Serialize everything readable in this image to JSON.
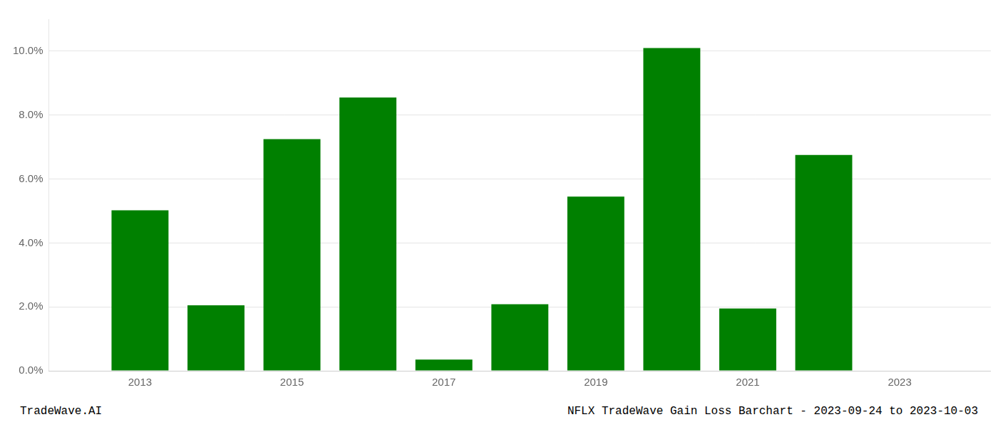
{
  "chart_data": {
    "type": "bar",
    "x": [
      2013,
      2014,
      2015,
      2016,
      2017,
      2018,
      2019,
      2020,
      2021,
      2022
    ],
    "values": [
      0.0502,
      0.0205,
      0.0725,
      0.0855,
      0.0035,
      0.0208,
      0.0545,
      0.101,
      0.0195,
      0.0675
    ],
    "color": "#008000",
    "xlim": [
      2011.8,
      2024.2
    ],
    "xticks": [
      2013,
      2015,
      2017,
      2019,
      2021,
      2023
    ],
    "ylim": [
      0,
      0.11
    ],
    "yticks": [
      {
        "value": 0.0,
        "label": "0.0%"
      },
      {
        "value": 0.02,
        "label": "2.0%"
      },
      {
        "value": 0.04,
        "label": "4.0%"
      },
      {
        "value": 0.06,
        "label": "6.0%"
      },
      {
        "value": 0.08,
        "label": "8.0%"
      },
      {
        "value": 0.1,
        "label": "10.0%"
      }
    ],
    "grid": "y",
    "annotations": [
      "TradeWave.AI",
      "NFLX TradeWave Gain Loss Barchart - 2023-09-24 to 2023-10-03"
    ]
  }
}
